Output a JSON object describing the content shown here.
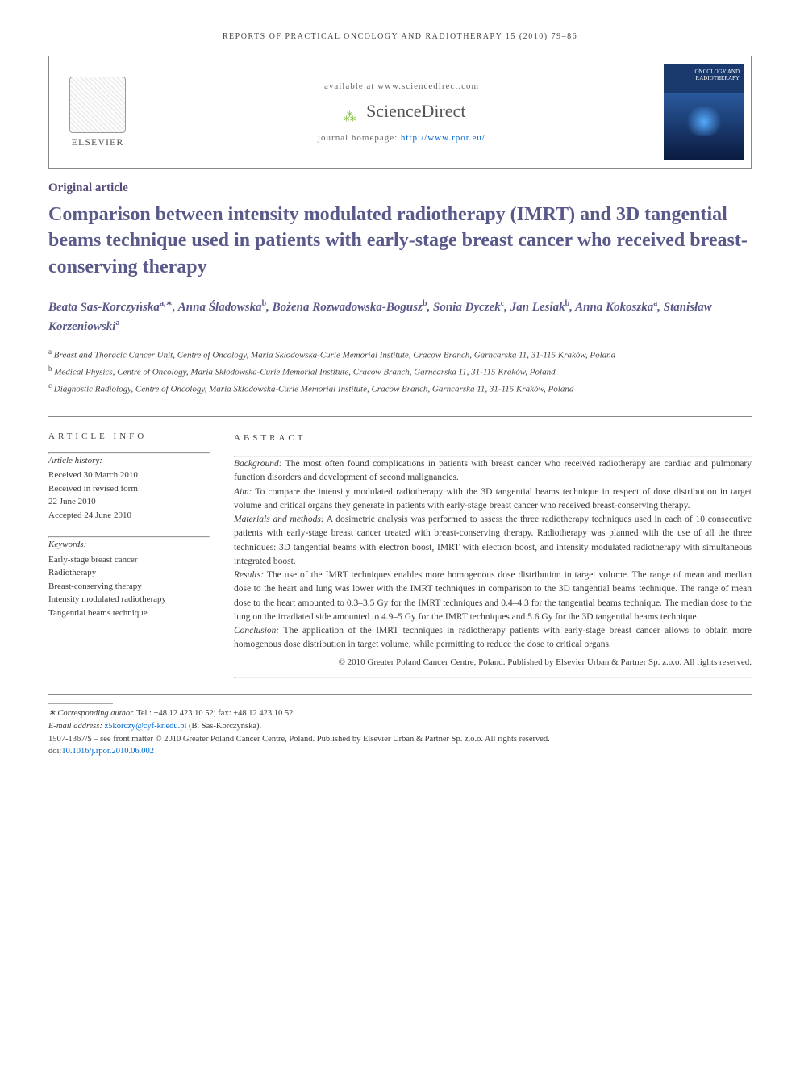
{
  "journal_header": "REPORTS OF PRACTICAL ONCOLOGY AND RADIOTHERAPY 15 (2010) 79–86",
  "header_box": {
    "elsevier": "ELSEVIER",
    "available_at": "available at www.sciencedirect.com",
    "sciencedirect": "ScienceDirect",
    "homepage_label": "journal homepage: ",
    "homepage_url": "http://www.rpor.eu/",
    "cover_text": "ONCOLOGY AND RADIOTHERAPY"
  },
  "article_type": "Original article",
  "title": "Comparison between intensity modulated radiotherapy (IMRT) and 3D tangential beams technique used in patients with early-stage breast cancer who received breast-conserving therapy",
  "authors_html": "Beata Sas-Korczyńska<sup>a,∗</sup>, Anna Śladowska<sup>b</sup>, Bożena Rozwadowska-Bogusz<sup>b</sup>, Sonia Dyczek<sup>c</sup>, Jan Lesiak<sup>b</sup>, Anna Kokoszka<sup>a</sup>, Stanisław Korzeniowski<sup>a</sup>",
  "affiliations": [
    {
      "sup": "a",
      "text": "Breast and Thoracic Cancer Unit, Centre of Oncology, Maria Skłodowska-Curie Memorial Institute, Cracow Branch, Garncarska 11, 31-115 Kraków, Poland"
    },
    {
      "sup": "b",
      "text": "Medical Physics, Centre of Oncology, Maria Skłodowska-Curie Memorial Institute, Cracow Branch, Garncarska 11, 31-115 Kraków, Poland"
    },
    {
      "sup": "c",
      "text": "Diagnostic Radiology, Centre of Oncology, Maria Skłodowska-Curie Memorial Institute, Cracow Branch, Garncarska 11, 31-115 Kraków, Poland"
    }
  ],
  "article_info": {
    "heading": "ARTICLE INFO",
    "history_label": "Article history:",
    "history": [
      "Received 30 March 2010",
      "Received in revised form",
      "22 June 2010",
      "Accepted 24 June 2010"
    ],
    "keywords_label": "Keywords:",
    "keywords": [
      "Early-stage breast cancer",
      "Radiotherapy",
      "Breast-conserving therapy",
      "Intensity modulated radiotherapy",
      "Tangential beams technique"
    ]
  },
  "abstract": {
    "heading": "ABSTRACT",
    "sections": [
      {
        "label": "Background:",
        "text": " The most often found complications in patients with breast cancer who received radiotherapy are cardiac and pulmonary function disorders and development of second malignancies."
      },
      {
        "label": "Aim:",
        "text": " To compare the intensity modulated radiotherapy with the 3D tangential beams technique in respect of dose distribution in target volume and critical organs they generate in patients with early-stage breast cancer who received breast-conserving therapy."
      },
      {
        "label": "Materials and methods:",
        "text": " A dosimetric analysis was performed to assess the three radiotherapy techniques used in each of 10 consecutive patients with early-stage breast cancer treated with breast-conserving therapy. Radiotherapy was planned with the use of all the three techniques: 3D tangential beams with electron boost, IMRT with electron boost, and intensity modulated radiotherapy with simultaneous integrated boost."
      },
      {
        "label": "Results:",
        "text": " The use of the IMRT techniques enables more homogenous dose distribution in target volume. The range of mean and median dose to the heart and lung was lower with the IMRT techniques in comparison to the 3D tangential beams technique. The range of mean dose to the heart amounted to 0.3–3.5 Gy for the IMRT techniques and 0.4–4.3 for the tangential beams technique. The median dose to the lung on the irradiated side amounted to 4.9–5 Gy for the IMRT techniques and 5.6 Gy for the 3D tangential beams technique."
      },
      {
        "label": "Conclusion:",
        "text": " The application of the IMRT techniques in radiotherapy patients with early-stage breast cancer allows to obtain more homogenous dose distribution in target volume, while permitting to reduce the dose to critical organs."
      }
    ],
    "copyright": "© 2010 Greater Poland Cancer Centre, Poland. Published by Elsevier Urban & Partner Sp. z.o.o. All rights reserved."
  },
  "footer": {
    "corresponding_label": "∗ Corresponding author.",
    "corresponding_contact": " Tel.: +48 12 423 10 52; fax: +48 12 423 10 52.",
    "email_label": "E-mail address: ",
    "email": "z5korczy@cyf-kr.edu.pl",
    "email_suffix": " (B. Sas-Korczyńska).",
    "issn_line": "1507-1367/$ – see front matter © 2010 Greater Poland Cancer Centre, Poland. Published by Elsevier Urban & Partner Sp. z.o.o. All rights reserved.",
    "doi_label": "doi:",
    "doi": "10.1016/j.rpor.2010.06.002"
  },
  "colors": {
    "title_color": "#5a5a8a",
    "link_color": "#0066cc",
    "text_color": "#3a3a3a",
    "border_color": "#888888"
  }
}
